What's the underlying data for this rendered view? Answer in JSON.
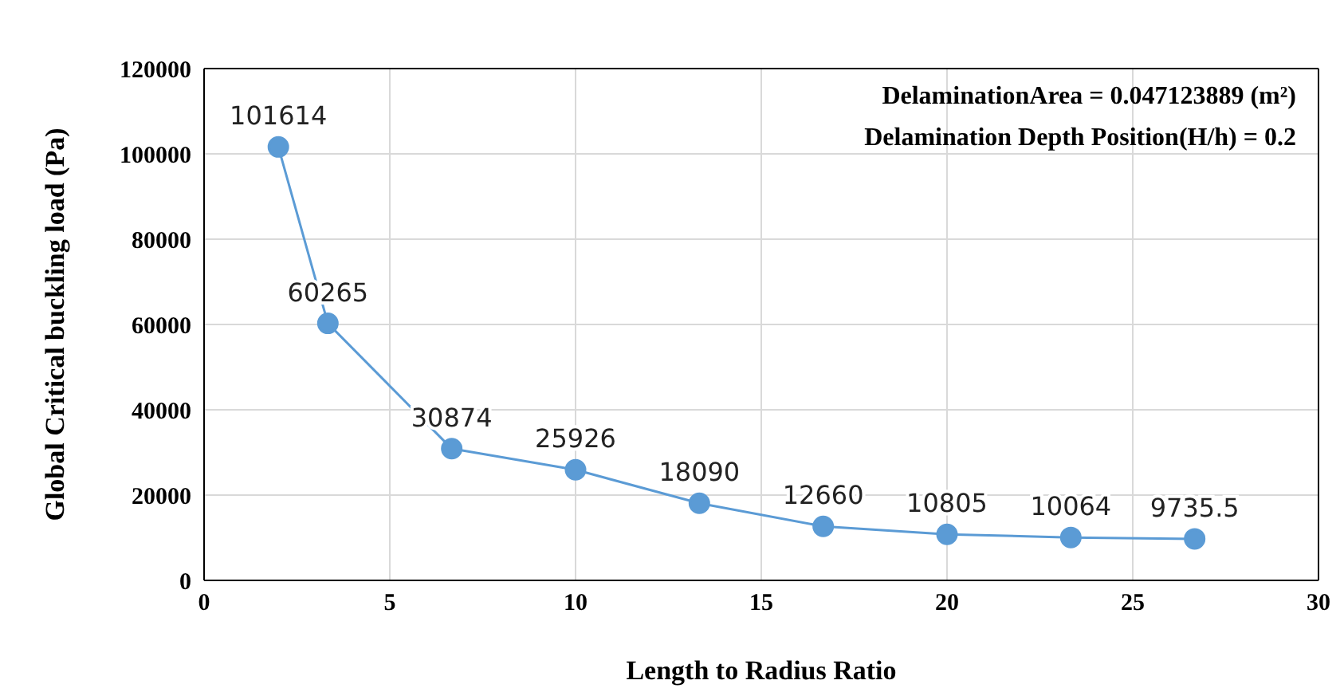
{
  "chart_data": {
    "type": "line",
    "xlabel": "Length to Radius Ratio",
    "ylabel": "Global Critical buckling load (Pa)",
    "x": [
      2,
      3.333,
      6.667,
      10,
      13.333,
      16.667,
      20,
      23.333,
      26.667
    ],
    "series": [
      {
        "color": "#5b9bd5",
        "values": [
          101614,
          60265,
          30874,
          25926,
          18090,
          12660,
          10805,
          10064,
          9735.5
        ]
      }
    ],
    "xlim": [
      0,
      30
    ],
    "xticks": [
      0,
      5,
      10,
      15,
      20,
      25,
      30
    ],
    "ylim": [
      0,
      120000
    ],
    "yticks": [
      0,
      20000,
      40000,
      60000,
      80000,
      100000,
      120000
    ],
    "grid": true,
    "marker": "circle",
    "line_style": "solid",
    "data_labels": true,
    "legend": false,
    "annotations": [
      "DelaminationArea = 0.047123889 (m²)",
      "Delamination Depth Position(H/h) = 0.2"
    ]
  }
}
